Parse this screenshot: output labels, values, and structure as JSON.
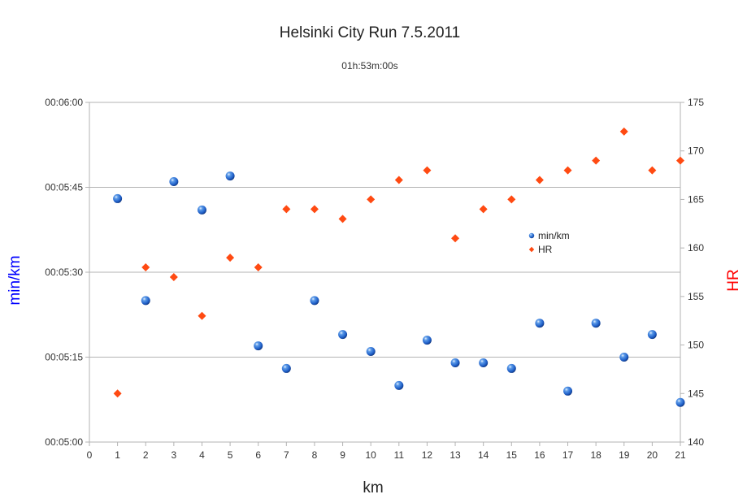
{
  "chart_data": {
    "type": "scatter",
    "title": "Helsinki City Run 7.5.2011",
    "subtitle": "01h:53m:00s",
    "xlabel": "km",
    "ylabel_left": "min/km",
    "ylabel_right": "HR",
    "xlim": [
      0,
      21
    ],
    "x_ticks": [
      "0",
      "1",
      "2",
      "3",
      "4",
      "5",
      "6",
      "7",
      "8",
      "9",
      "10",
      "11",
      "12",
      "13",
      "14",
      "15",
      "16",
      "17",
      "18",
      "19",
      "20",
      "21"
    ],
    "ylim_left_seconds": [
      300,
      360
    ],
    "y_ticks_left": [
      "00:05:00",
      "00:05:15",
      "00:05:30",
      "00:05:45",
      "00:06:00"
    ],
    "ylim_right": [
      140,
      175
    ],
    "y_ticks_right": [
      "140",
      "145",
      "150",
      "155",
      "160",
      "165",
      "170",
      "175"
    ],
    "grid": true,
    "legend_position": "center-right",
    "colors": {
      "pace": "#1f5fc8",
      "hr": "#ff4a12",
      "left_axis_label": "#0000ff",
      "right_axis_label": "#ff0000",
      "grid": "#b3b3b3"
    },
    "series": [
      {
        "name": "min/km",
        "axis": "left",
        "marker": "sphere",
        "x": [
          1,
          2,
          3,
          4,
          5,
          6,
          7,
          8,
          9,
          10,
          11,
          12,
          13,
          14,
          15,
          16,
          17,
          18,
          19,
          20,
          21
        ],
        "y": [
          "00:05:43",
          "00:05:25",
          "00:05:46",
          "00:05:41",
          "00:05:47",
          "00:05:17",
          "00:05:13",
          "00:05:25",
          "00:05:19",
          "00:05:16",
          "00:05:10",
          "00:05:18",
          "00:05:14",
          "00:05:14",
          "00:05:13",
          "00:05:21",
          "00:05:09",
          "00:05:21",
          "00:05:15",
          "00:05:19",
          "00:05:07"
        ],
        "y_seconds": [
          343,
          325,
          346,
          341,
          347,
          317,
          313,
          325,
          319,
          316,
          310,
          318,
          314,
          314,
          313,
          321,
          309,
          321,
          315,
          319,
          307
        ]
      },
      {
        "name": "HR",
        "axis": "right",
        "marker": "diamond",
        "x": [
          1,
          2,
          3,
          4,
          5,
          6,
          7,
          8,
          9,
          10,
          11,
          12,
          13,
          14,
          15,
          16,
          17,
          18,
          19,
          20,
          21
        ],
        "y": [
          145,
          158,
          157,
          153,
          159,
          158,
          164,
          164,
          163,
          165,
          167,
          168,
          161,
          164,
          165,
          167,
          168,
          169,
          172,
          168,
          169
        ]
      }
    ]
  }
}
